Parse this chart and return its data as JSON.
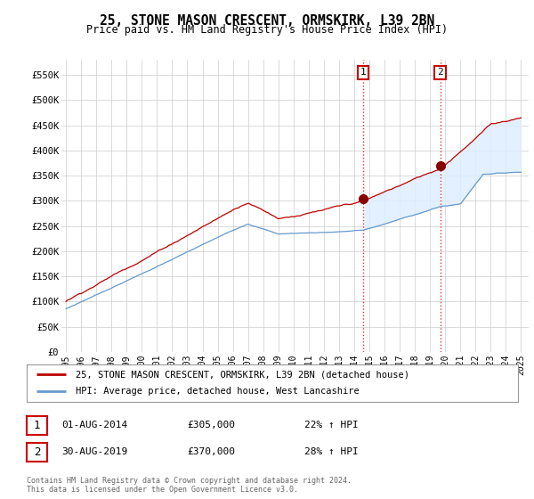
{
  "title": "25, STONE MASON CRESCENT, ORMSKIRK, L39 2BN",
  "subtitle": "Price paid vs. HM Land Registry's House Price Index (HPI)",
  "ylim": [
    0,
    580000
  ],
  "yticks": [
    0,
    50000,
    100000,
    150000,
    200000,
    250000,
    300000,
    350000,
    400000,
    450000,
    500000,
    550000
  ],
  "ytick_labels": [
    "£0",
    "£50K",
    "£100K",
    "£150K",
    "£200K",
    "£250K",
    "£300K",
    "£350K",
    "£400K",
    "£450K",
    "£500K",
    "£550K"
  ],
  "xlim_start": 1994.7,
  "xlim_end": 2025.5,
  "xticks": [
    1995,
    1996,
    1997,
    1998,
    1999,
    2000,
    2001,
    2002,
    2003,
    2004,
    2005,
    2006,
    2007,
    2008,
    2009,
    2010,
    2011,
    2012,
    2013,
    2014,
    2015,
    2016,
    2017,
    2018,
    2019,
    2020,
    2021,
    2022,
    2023,
    2024,
    2025
  ],
  "sale1_x": 2014.583,
  "sale1_y": 305000,
  "sale1_label": "1",
  "sale2_x": 2019.667,
  "sale2_y": 370000,
  "sale2_label": "2",
  "annotation1_date": "01-AUG-2014",
  "annotation1_price": "£305,000",
  "annotation1_hpi": "22% ↑ HPI",
  "annotation2_date": "30-AUG-2019",
  "annotation2_price": "£370,000",
  "annotation2_hpi": "28% ↑ HPI",
  "legend_line1": "25, STONE MASON CRESCENT, ORMSKIRK, L39 2BN (detached house)",
  "legend_line2": "HPI: Average price, detached house, West Lancashire",
  "footer": "Contains HM Land Registry data © Crown copyright and database right 2024.\nThis data is licensed under the Open Government Licence v3.0.",
  "line1_color": "#bb0000",
  "line2_color": "#6699cc",
  "shade_color": "#ddeeff",
  "grid_color": "#cccccc",
  "background_color": "#ffffff",
  "marker_color": "#880000"
}
